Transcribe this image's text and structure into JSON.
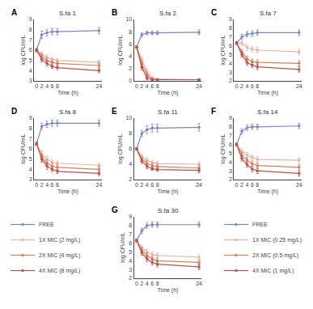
{
  "chart_data": [
    {
      "type": "line",
      "title": "S.fa 1",
      "annotations": [
        "A"
      ],
      "xlabel": "Time (h)",
      "ylabel": "log CFU/mL",
      "x": [
        0,
        2,
        4,
        6,
        8,
        24
      ],
      "xlim": [
        -1,
        25
      ],
      "xticks": [
        0,
        2,
        4,
        6,
        8,
        24
      ],
      "ylim": [
        3,
        9
      ],
      "yticks": [
        3,
        4,
        5,
        6,
        7,
        8,
        9
      ],
      "grid": false,
      "marker": "circle",
      "series": [
        {
          "name": "FREE",
          "color": "#7b86c8",
          "values": [
            6.0,
            7.5,
            7.7,
            7.8,
            7.8,
            7.9
          ],
          "err": [
            0.15,
            0.35,
            0.3,
            0.3,
            0.3,
            0.3
          ]
        },
        {
          "name": "1X MIC (2 mg/L)",
          "color": "#e8b4a8",
          "values": [
            6.0,
            5.6,
            5.3,
            5.1,
            5.0,
            4.8
          ],
          "err": [
            0.15,
            0.25,
            0.25,
            0.2,
            0.2,
            0.2
          ]
        },
        {
          "name": "2X MIC (4 mg/L)",
          "color": "#d4825a",
          "values": [
            6.0,
            5.4,
            5.0,
            4.8,
            4.7,
            4.5
          ],
          "err": [
            0.15,
            0.25,
            0.25,
            0.2,
            0.2,
            0.2
          ]
        },
        {
          "name": "4X MIC (8 mg/L)",
          "color": "#c0504d",
          "values": [
            6.0,
            5.1,
            4.7,
            4.4,
            4.3,
            4.0
          ],
          "err": [
            0.15,
            0.25,
            0.25,
            0.2,
            0.2,
            0.2
          ]
        }
      ]
    },
    {
      "type": "line",
      "title": "S.fa 2",
      "annotations": [
        "B"
      ],
      "xlabel": "Time (h)",
      "ylabel": "log CFU/mL",
      "x": [
        0,
        2,
        4,
        6,
        8,
        24
      ],
      "xlim": [
        -1,
        25
      ],
      "xticks": [
        0,
        2,
        4,
        6,
        8,
        24
      ],
      "ylim": [
        0,
        10
      ],
      "yticks": [
        0,
        2,
        4,
        6,
        8,
        10
      ],
      "grid": false,
      "marker": "circle",
      "series": [
        {
          "name": "FREE",
          "color": "#7b86c8",
          "values": [
            5.5,
            7.5,
            7.8,
            7.8,
            7.8,
            7.9
          ],
          "err": [
            0.15,
            0.3,
            0.3,
            0.3,
            0.3,
            0.4
          ]
        },
        {
          "name": "1X MIC (2 mg/L)",
          "color": "#e8b4a8",
          "values": [
            5.5,
            3.5,
            1.5,
            0.5,
            0.3,
            0.2
          ],
          "err": [
            0.15,
            0.5,
            0.5,
            0.2,
            0.1,
            0.1
          ]
        },
        {
          "name": "2X MIC (4 mg/L)",
          "color": "#d4825a",
          "values": [
            5.5,
            2.8,
            1.0,
            0.3,
            0.2,
            0.2
          ],
          "err": [
            0.15,
            0.5,
            0.4,
            0.1,
            0.1,
            0.1
          ]
        },
        {
          "name": "4X MIC (8 mg/L)",
          "color": "#c0504d",
          "values": [
            5.5,
            2.2,
            0.5,
            0.2,
            0.2,
            0.2
          ],
          "err": [
            0.15,
            0.4,
            0.3,
            0.1,
            0.1,
            0.1
          ]
        }
      ]
    },
    {
      "type": "line",
      "title": "S.fa 7",
      "annotations": [
        "C"
      ],
      "xlabel": "Time (h)",
      "ylabel": "log CFU/mL",
      "x": [
        0,
        2,
        4,
        6,
        8,
        24
      ],
      "xlim": [
        -1,
        25
      ],
      "xticks": [
        0,
        2,
        4,
        6,
        8,
        24
      ],
      "ylim": [
        2,
        9
      ],
      "yticks": [
        2,
        3,
        4,
        5,
        6,
        7,
        8,
        9
      ],
      "grid": false,
      "marker": "circle",
      "series": [
        {
          "name": "FREE",
          "color": "#7b86c8",
          "values": [
            6.3,
            7.0,
            7.3,
            7.4,
            7.5,
            7.5
          ],
          "err": [
            0.15,
            0.3,
            0.3,
            0.3,
            0.3,
            0.3
          ]
        },
        {
          "name": "1X MIC (2 mg/L)",
          "color": "#e8b4a8",
          "values": [
            6.3,
            6.3,
            5.8,
            5.6,
            5.5,
            5.3
          ],
          "err": [
            0.15,
            0.3,
            0.3,
            0.3,
            0.3,
            0.3
          ]
        },
        {
          "name": "2X MIC (4 mg/L)",
          "color": "#d4825a",
          "values": [
            6.3,
            5.3,
            4.5,
            4.2,
            4.1,
            4.0
          ],
          "err": [
            0.15,
            0.3,
            0.3,
            0.3,
            0.3,
            0.3
          ]
        },
        {
          "name": "4X MIC (8 mg/L)",
          "color": "#c0504d",
          "values": [
            6.3,
            5.0,
            4.1,
            3.8,
            3.6,
            3.3
          ],
          "err": [
            0.15,
            0.3,
            0.3,
            0.3,
            0.3,
            0.3
          ]
        }
      ]
    },
    {
      "type": "line",
      "title": "S.fa 8",
      "annotations": [
        "D"
      ],
      "xlabel": "Time (h)",
      "ylabel": "log CFU/mL",
      "x": [
        0,
        2,
        4,
        6,
        8,
        24
      ],
      "xlim": [
        -1,
        25
      ],
      "xticks": [
        0,
        2,
        4,
        6,
        8,
        24
      ],
      "ylim": [
        3,
        9
      ],
      "yticks": [
        3,
        4,
        5,
        6,
        7,
        8,
        9
      ],
      "grid": false,
      "marker": "circle",
      "series": [
        {
          "name": "FREE",
          "color": "#7b86c8",
          "values": [
            6.5,
            8.2,
            8.4,
            8.5,
            8.5,
            8.5
          ],
          "err": [
            0.15,
            0.3,
            0.3,
            0.3,
            0.3,
            0.3
          ]
        },
        {
          "name": "1X MIC (2 mg/L)",
          "color": "#e8b4a8",
          "values": [
            6.5,
            5.5,
            5.0,
            4.7,
            4.6,
            4.4
          ],
          "err": [
            0.15,
            0.3,
            0.3,
            0.2,
            0.2,
            0.2
          ]
        },
        {
          "name": "2X MIC (4 mg/L)",
          "color": "#d4825a",
          "values": [
            6.5,
            5.2,
            4.6,
            4.3,
            4.2,
            4.0
          ],
          "err": [
            0.15,
            0.3,
            0.3,
            0.3,
            0.3,
            0.3
          ]
        },
        {
          "name": "4X MIC (8 mg/L)",
          "color": "#c0504d",
          "values": [
            6.5,
            5.0,
            4.3,
            4.0,
            3.8,
            3.6
          ],
          "err": [
            0.15,
            0.3,
            0.3,
            0.2,
            0.2,
            0.2
          ]
        }
      ]
    },
    {
      "type": "line",
      "title": "S.fa 11",
      "annotations": [
        "E"
      ],
      "xlabel": "Time (h)",
      "ylabel": "log CFU/mL",
      "x": [
        0,
        2,
        4,
        6,
        8,
        24
      ],
      "xlim": [
        -1,
        25
      ],
      "xticks": [
        0,
        2,
        4,
        6,
        8,
        24
      ],
      "ylim": [
        2,
        10
      ],
      "yticks": [
        2,
        4,
        6,
        8,
        10
      ],
      "grid": false,
      "marker": "circle",
      "series": [
        {
          "name": "FREE",
          "color": "#7b86c8",
          "values": [
            6.0,
            8.0,
            8.5,
            8.7,
            8.7,
            8.8
          ],
          "err": [
            0.15,
            0.4,
            0.5,
            0.5,
            0.5,
            0.5
          ]
        },
        {
          "name": "1X MIC (2 mg/L)",
          "color": "#e8b4a8",
          "values": [
            6.0,
            5.0,
            4.5,
            4.2,
            4.1,
            4.0
          ],
          "err": [
            0.15,
            0.3,
            0.3,
            0.3,
            0.3,
            0.3
          ]
        },
        {
          "name": "2X MIC (4 mg/L)",
          "color": "#d4825a",
          "values": [
            6.0,
            4.7,
            4.1,
            3.8,
            3.7,
            3.5
          ],
          "err": [
            0.15,
            0.3,
            0.3,
            0.3,
            0.3,
            0.4
          ]
        },
        {
          "name": "4X MIC (8 mg/L)",
          "color": "#c0504d",
          "values": [
            6.0,
            4.4,
            3.7,
            3.4,
            3.3,
            3.2
          ],
          "err": [
            0.15,
            0.3,
            0.3,
            0.2,
            0.2,
            0.3
          ]
        }
      ]
    },
    {
      "type": "line",
      "title": "S.fa 14",
      "annotations": [
        "F"
      ],
      "xlabel": "Time (h)",
      "ylabel": "log CFU/mL",
      "x": [
        0,
        2,
        4,
        6,
        8,
        24
      ],
      "xlim": [
        -1,
        25
      ],
      "xticks": [
        0,
        2,
        4,
        6,
        8,
        24
      ],
      "ylim": [
        2,
        9
      ],
      "yticks": [
        2,
        3,
        4,
        5,
        6,
        7,
        8,
        9
      ],
      "grid": false,
      "marker": "circle",
      "series": [
        {
          "name": "FREE",
          "color": "#7b86c8",
          "values": [
            6.0,
            7.5,
            7.9,
            8.0,
            8.0,
            8.1
          ],
          "err": [
            0.15,
            0.3,
            0.3,
            0.3,
            0.3,
            0.3
          ]
        },
        {
          "name": "1X MIC (2 mg/L)",
          "color": "#e8b4a8",
          "values": [
            6.0,
            5.2,
            4.8,
            4.5,
            4.3,
            4.2
          ],
          "err": [
            0.15,
            0.3,
            0.3,
            0.3,
            0.3,
            0.3
          ]
        },
        {
          "name": "2X MIC (4 mg/L)",
          "color": "#d4825a",
          "values": [
            6.0,
            4.8,
            4.2,
            3.8,
            3.6,
            3.4
          ],
          "err": [
            0.15,
            0.3,
            0.3,
            0.3,
            0.3,
            0.3
          ]
        },
        {
          "name": "4X MIC (8 mg/L)",
          "color": "#c0504d",
          "values": [
            6.0,
            4.4,
            3.7,
            3.2,
            3.0,
            2.7
          ],
          "err": [
            0.15,
            0.3,
            0.3,
            0.3,
            0.3,
            0.3
          ]
        }
      ]
    },
    {
      "type": "line",
      "title": "S.fa 30",
      "annotations": [
        "G"
      ],
      "xlabel": "Time (h)",
      "ylabel": "log CFU/mL",
      "x": [
        0,
        2,
        4,
        6,
        8,
        24
      ],
      "xlim": [
        -1,
        25
      ],
      "xticks": [
        0,
        2,
        4,
        6,
        8,
        24
      ],
      "ylim": [
        2,
        9
      ],
      "yticks": [
        2,
        3,
        4,
        5,
        6,
        7,
        8,
        9
      ],
      "grid": false,
      "marker": "circle",
      "series": [
        {
          "name": "FREE",
          "color": "#7b86c8",
          "values": [
            6.3,
            7.4,
            8.0,
            8.1,
            8.1,
            8.1
          ],
          "err": [
            0.15,
            0.3,
            0.3,
            0.3,
            0.3,
            0.3
          ]
        },
        {
          "name": "1X MIC (0.25 mg/L)",
          "color": "#e8b4a8",
          "values": [
            6.3,
            5.5,
            5.0,
            4.7,
            4.6,
            4.4
          ],
          "err": [
            0.15,
            0.3,
            0.3,
            0.3,
            0.3,
            0.3
          ]
        },
        {
          "name": "2X MIC (0.5 mg/L)",
          "color": "#d4825a",
          "values": [
            6.3,
            5.2,
            4.6,
            4.2,
            4.0,
            3.8
          ],
          "err": [
            0.15,
            0.3,
            0.3,
            0.3,
            0.3,
            0.3
          ]
        },
        {
          "name": "4X MIC (1 mg/L)",
          "color": "#c0504d",
          "values": [
            6.3,
            4.9,
            4.2,
            3.8,
            3.6,
            3.3
          ],
          "err": [
            0.15,
            0.3,
            0.3,
            0.3,
            0.3,
            0.3
          ]
        }
      ]
    }
  ]
}
